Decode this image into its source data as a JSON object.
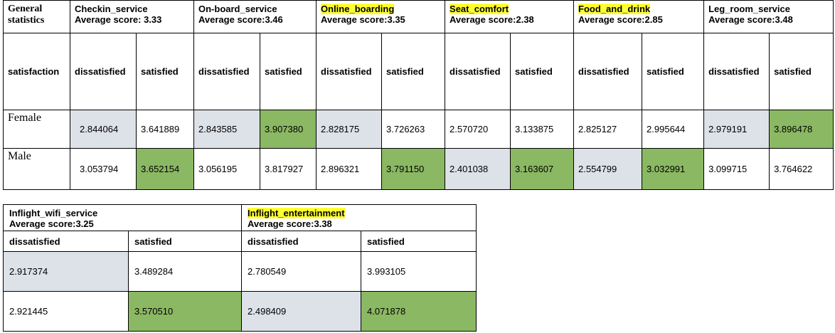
{
  "colors": {
    "grey_highlight": "#dde1e8",
    "green_highlight": "#8bb863",
    "yellow_highlight": "#ffff33"
  },
  "table1": {
    "general_label": "General statistics",
    "row_label": "satisfaction",
    "sub_labels": [
      "dissatisfied",
      "satisfied"
    ],
    "services": [
      {
        "name": "Checkin_service",
        "avg": "Average score: 3.33",
        "highlight": false
      },
      {
        "name": "On-board_service",
        "avg": "Average score:3.46",
        "highlight": false
      },
      {
        "name": "Online_boarding",
        "avg": "Average score:3.35",
        "highlight": true
      },
      {
        "name": "Seat_comfort",
        "avg": "Average score:2.38",
        "highlight": true
      },
      {
        "name": "Food_and_drink",
        "avg": "Average score:2.85",
        "highlight": true
      },
      {
        "name": "Leg_room_service",
        "avg": "Average score:3.48",
        "highlight": false
      }
    ],
    "rows": [
      {
        "label": "Female",
        "values": [
          "2.844064",
          "3.641889",
          "2.843585",
          "3.907380",
          "2.828175",
          "3.726263",
          "2.570720",
          "3.133875",
          "2.825127",
          "2.995644",
          "2.979191",
          "3.896478"
        ],
        "shade": [
          "grey",
          "",
          "grey",
          "green",
          "grey",
          "",
          "",
          "",
          "",
          "",
          "grey",
          "green"
        ]
      },
      {
        "label": "Male",
        "values": [
          "3.053794",
          "3.652154",
          "3.056195",
          "3.817927",
          "2.896321",
          "3.791150",
          "2.401038",
          "3.163607",
          "2.554799",
          "3.032991",
          "3.099715",
          "3.764622"
        ],
        "shade": [
          "",
          "green",
          "",
          "",
          "",
          "green",
          "grey",
          "green",
          "grey",
          "green",
          "",
          ""
        ]
      }
    ]
  },
  "table2": {
    "sub_labels": [
      "dissatisfied",
      "satisfied"
    ],
    "services": [
      {
        "name": "Inflight_wifi_service",
        "avg": "Average score:3.25",
        "highlight": false
      },
      {
        "name": "Inflight_entertainment",
        "avg": "Average score:3.38",
        "highlight": true
      }
    ],
    "rows": [
      {
        "values": [
          "2.917374",
          "3.489284",
          "2.780549",
          "3.993105"
        ],
        "shade": [
          "grey",
          "",
          "",
          ""
        ]
      },
      {
        "values": [
          "2.921445",
          "3.570510",
          "2.498409",
          "4.071878"
        ],
        "shade": [
          "",
          "green",
          "grey",
          "green"
        ]
      }
    ]
  }
}
